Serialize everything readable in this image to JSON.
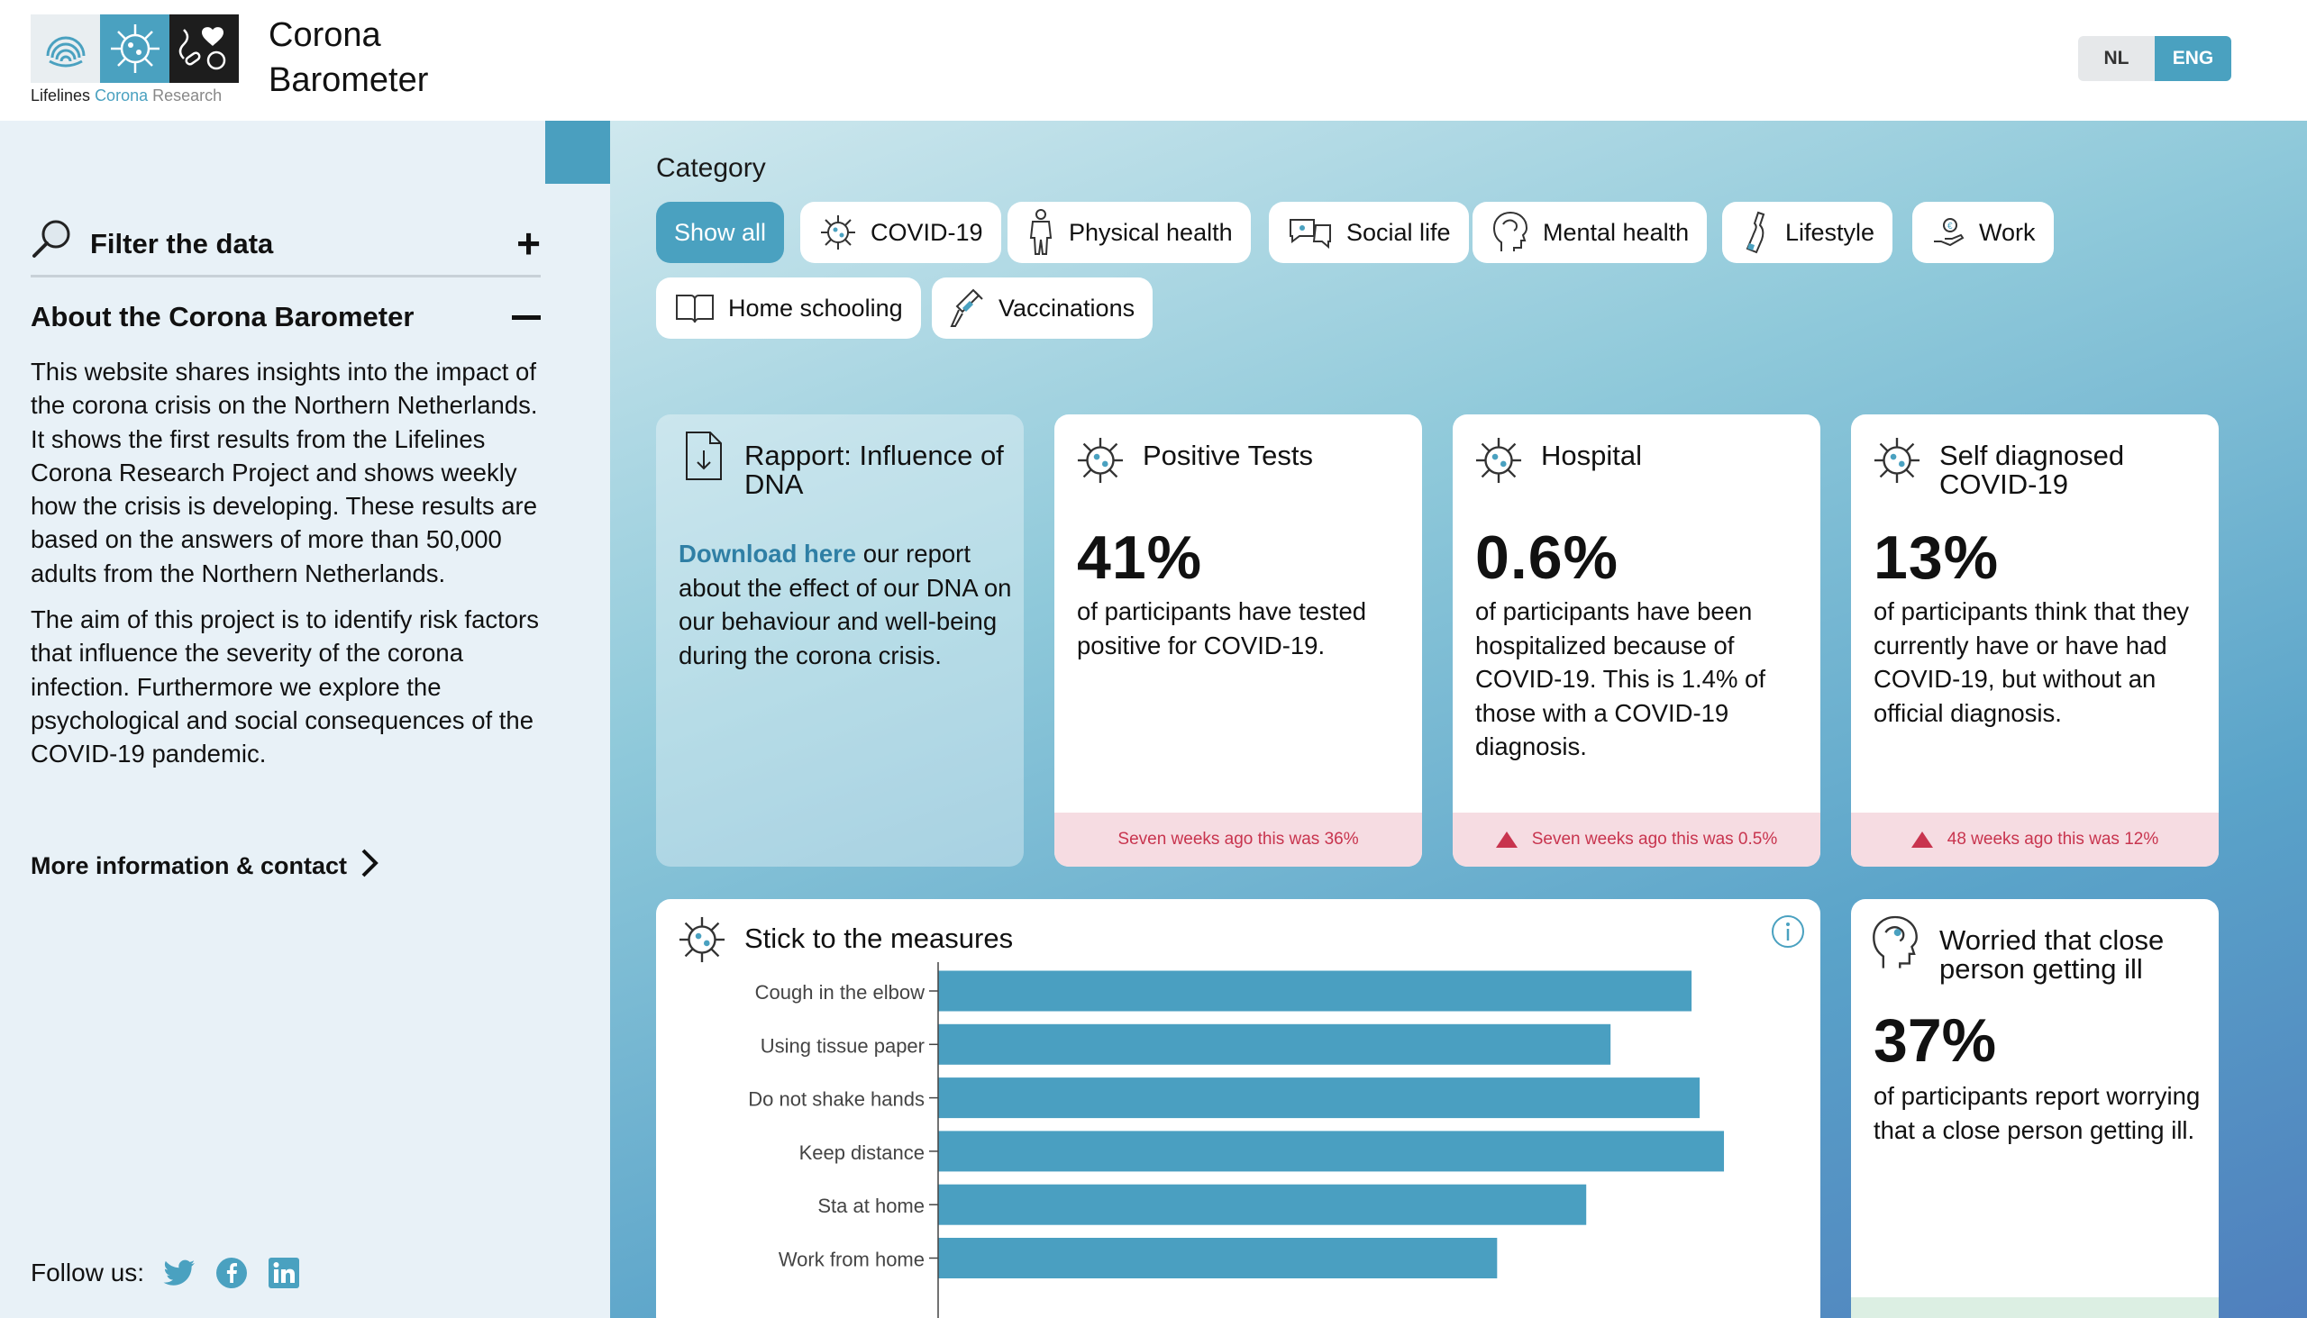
{
  "header": {
    "logo_caption": [
      "Lifelines",
      "Corona",
      "Research"
    ],
    "title": "Corona Barometer",
    "lang": {
      "nl": "NL",
      "en": "ENG"
    }
  },
  "sidebar": {
    "filter_label": "Filter the data",
    "about_title": "About the Corona Barometer",
    "about_p1": "This website shares insights into the impact of the corona crisis on the Northern Netherlands. It shows the first results from the Lifelines Corona Research Project and shows weekly how the crisis is developing. These results are based on the answers of more than 50,000 adults from the Northern Netherlands.",
    "about_p2": "The aim of this project is to identify risk factors that influence the severity of the corona infection. Furthermore we explore the psychological and social consequences of the COVID-19 pandemic.",
    "more_info": "More information & contact",
    "follow_label": "Follow us:",
    "social": [
      "twitter-icon",
      "facebook-icon",
      "linkedin-icon"
    ]
  },
  "category": {
    "label": "Category",
    "chips": [
      {
        "label": "Show all",
        "icon": ""
      },
      {
        "label": "COVID-19",
        "icon": "virus-icon"
      },
      {
        "label": "Physical health",
        "icon": "body-icon"
      },
      {
        "label": "Social life",
        "icon": "chat-icon"
      },
      {
        "label": "Mental health",
        "icon": "head-icon"
      },
      {
        "label": "Lifestyle",
        "icon": "bottle-icon"
      },
      {
        "label": "Work",
        "icon": "hand-icon"
      },
      {
        "label": "Home schooling",
        "icon": "book-icon"
      },
      {
        "label": "Vaccinations",
        "icon": "syringe-icon"
      }
    ]
  },
  "cards": {
    "dna": {
      "title": "Rapport: Influence of DNA",
      "link": "Download here",
      "text": " our report about the effect of our DNA on our behaviour and well-being during the corona crisis."
    },
    "positive": {
      "title": "Positive Tests",
      "value": "41%",
      "desc": "of participants have tested positive for COVID-19.",
      "foot": "Seven weeks ago this was 36%"
    },
    "hospital": {
      "title": "Hospital",
      "value": "0.6%",
      "desc": "of participants have been hospitalized because of COVID-19. This is 1.4% of those with a COVID-19 diagnosis.",
      "foot": "Seven weeks ago this was 0.5%"
    },
    "selfdiag": {
      "title": "Self diagnosed COVID-19",
      "value": "13%",
      "desc": "of participants think that they currently have or have had COVID-19, but without an official diagnosis.",
      "foot": "48 weeks ago this was 12%"
    },
    "worried": {
      "title": "Worried that close person getting ill",
      "value": "37%",
      "desc": "of participants report worrying that a close person getting ill."
    },
    "measures": {
      "title": "Stick to the measures"
    }
  },
  "colors": {
    "accent": "#4aa1c0",
    "bar": "#4a9fc1",
    "alert": "#c8344e",
    "sidebar": "#e8f1f7"
  },
  "chart_data": {
    "type": "bar",
    "orientation": "horizontal",
    "categories": [
      "Cough in the elbow",
      "Using tissue paper",
      "Do not shake hands",
      "Keep distance",
      "Sta at home",
      "Work from home"
    ],
    "values": [
      93,
      83,
      94,
      97,
      80,
      69
    ],
    "xlim": [
      0,
      100
    ],
    "title": "Stick to the measures"
  }
}
